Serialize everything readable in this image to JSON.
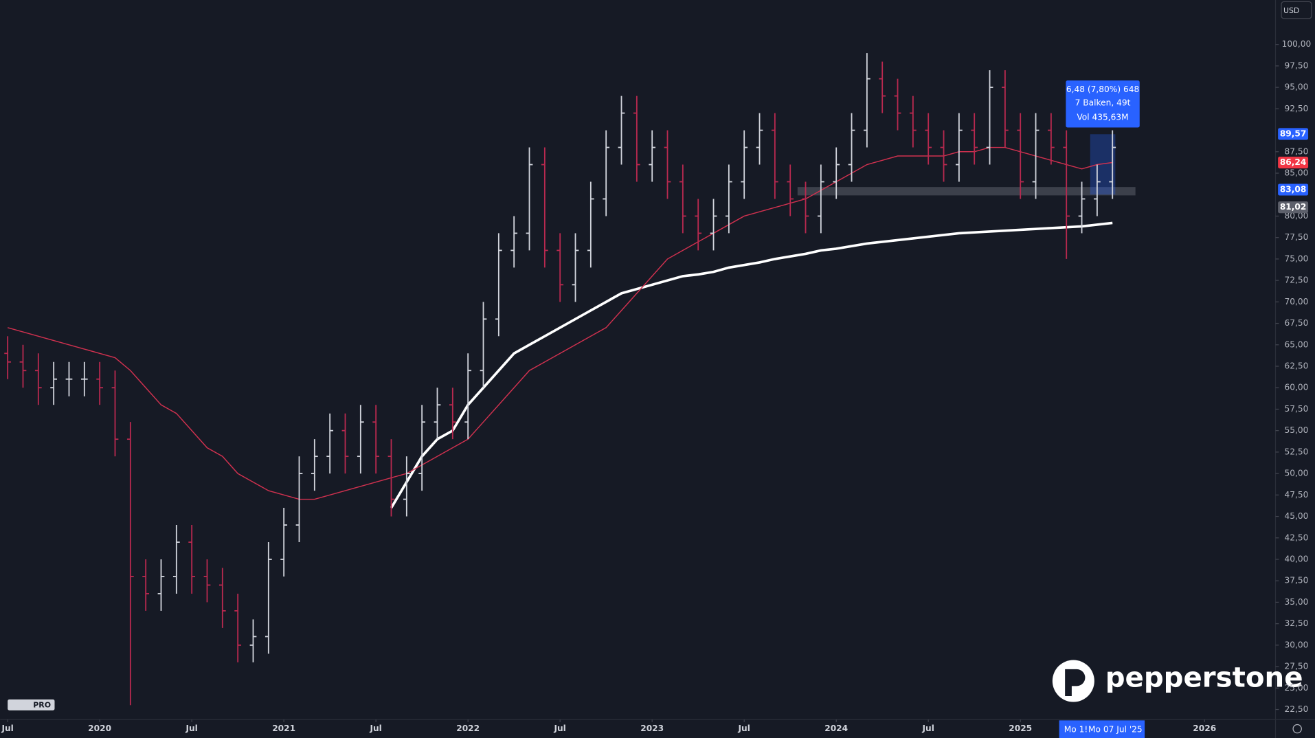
{
  "chart_data": {
    "type": "candlestick",
    "currency": "USD",
    "tv_logo": "PRO",
    "brand": "pepperstone",
    "categories": [
      "2019-07",
      "2019-08",
      "2019-09",
      "2019-10",
      "2019-11",
      "2019-12",
      "2020-01",
      "2020-02",
      "2020-03",
      "2020-04",
      "2020-05",
      "2020-06",
      "2020-07",
      "2020-08",
      "2020-09",
      "2020-10",
      "2020-11",
      "2020-12",
      "2021-01",
      "2021-02",
      "2021-03",
      "2021-04",
      "2021-05",
      "2021-06",
      "2021-07",
      "2021-08",
      "2021-09",
      "2021-10",
      "2021-11",
      "2021-12",
      "2022-01",
      "2022-02",
      "2022-03",
      "2022-04",
      "2022-05",
      "2022-06",
      "2022-07",
      "2022-08",
      "2022-09",
      "2022-10",
      "2022-11",
      "2022-12",
      "2023-01",
      "2023-02",
      "2023-03",
      "2023-04",
      "2023-05",
      "2023-06",
      "2023-07",
      "2023-08",
      "2023-09",
      "2023-10",
      "2023-11",
      "2023-12",
      "2024-01",
      "2024-02",
      "2024-03",
      "2024-04",
      "2024-05",
      "2024-06",
      "2024-07",
      "2024-08",
      "2024-09",
      "2024-10",
      "2024-11",
      "2024-12",
      "2025-01",
      "2025-02",
      "2025-03",
      "2025-04",
      "2025-05",
      "2025-06",
      "2025-07"
    ],
    "open": [
      64,
      63,
      62,
      60,
      61,
      61,
      61,
      60,
      54,
      38,
      36,
      38,
      42,
      38,
      37,
      34,
      30,
      31,
      40,
      44,
      50,
      52,
      55,
      52,
      56,
      52,
      47,
      50,
      56,
      58,
      56,
      62,
      68,
      76,
      78,
      86,
      76,
      72,
      76,
      82,
      88,
      92,
      86,
      88,
      84,
      80,
      78,
      80,
      84,
      88,
      90,
      84,
      82,
      80,
      84,
      86,
      90,
      96,
      94,
      92,
      90,
      88,
      86,
      90,
      88,
      95,
      90,
      84,
      90,
      88,
      80,
      82,
      84
    ],
    "high": [
      66,
      65,
      64,
      63,
      63,
      63,
      63,
      62,
      56,
      40,
      40,
      44,
      44,
      40,
      39,
      36,
      33,
      42,
      46,
      52,
      54,
      57,
      57,
      58,
      58,
      54,
      52,
      58,
      60,
      60,
      64,
      70,
      78,
      80,
      88,
      88,
      78,
      78,
      84,
      90,
      94,
      94,
      90,
      90,
      86,
      82,
      82,
      86,
      90,
      92,
      92,
      86,
      84,
      86,
      88,
      92,
      99,
      98,
      96,
      94,
      92,
      90,
      92,
      92,
      97,
      97,
      92,
      92,
      92,
      90,
      84,
      86,
      90
    ],
    "low": [
      61,
      60,
      58,
      58,
      59,
      59,
      58,
      52,
      23,
      34,
      34,
      36,
      36,
      35,
      32,
      28,
      28,
      29,
      38,
      42,
      48,
      50,
      50,
      50,
      50,
      45,
      45,
      48,
      54,
      54,
      54,
      60,
      66,
      74,
      76,
      74,
      70,
      70,
      74,
      80,
      86,
      84,
      84,
      82,
      78,
      76,
      76,
      78,
      82,
      86,
      82,
      80,
      78,
      78,
      82,
      84,
      88,
      92,
      90,
      88,
      86,
      84,
      84,
      86,
      86,
      88,
      82,
      82,
      86,
      75,
      78,
      80,
      82
    ],
    "close": [
      63,
      62,
      60,
      61,
      61,
      61,
      60,
      54,
      38,
      36,
      38,
      42,
      38,
      37,
      34,
      30,
      31,
      40,
      44,
      50,
      52,
      55,
      52,
      56,
      52,
      47,
      50,
      56,
      58,
      56,
      62,
      68,
      76,
      78,
      86,
      76,
      72,
      76,
      82,
      88,
      92,
      86,
      88,
      84,
      80,
      78,
      80,
      84,
      88,
      90,
      84,
      82,
      80,
      84,
      86,
      90,
      96,
      94,
      92,
      90,
      88,
      86,
      90,
      88,
      95,
      90,
      84,
      90,
      88,
      80,
      82,
      84,
      88
    ],
    "up_color": "#d1d4dc",
    "down_color": "#b8294f",
    "overlays": [
      {
        "color": "#ffffff",
        "values": [
          null,
          null,
          null,
          null,
          null,
          null,
          null,
          null,
          null,
          null,
          null,
          null,
          null,
          null,
          null,
          null,
          null,
          null,
          null,
          null,
          null,
          null,
          null,
          null,
          null,
          46,
          49,
          52,
          54,
          55,
          58,
          60,
          62,
          64,
          65,
          66,
          67,
          68,
          69,
          70,
          71,
          71.5,
          72,
          72.5,
          73,
          73.2,
          73.5,
          74,
          74.3,
          74.6,
          75,
          75.3,
          75.6,
          76,
          76.2,
          76.5,
          76.8,
          77,
          77.2,
          77.4,
          77.6,
          77.8,
          78,
          78.1,
          78.2,
          78.3,
          78.4,
          78.5,
          78.6,
          78.7,
          78.8,
          79,
          79.2
        ]
      },
      {
        "color": "#d0314f",
        "values": [
          67,
          66.5,
          66,
          65.5,
          65,
          64.5,
          64,
          63.5,
          62,
          60,
          58,
          57,
          55,
          53,
          52,
          50,
          49,
          48,
          47.5,
          47,
          47,
          47.5,
          48,
          48.5,
          49,
          49.5,
          50,
          51,
          52,
          53,
          54,
          56,
          58,
          60,
          62,
          63,
          64,
          65,
          66,
          67,
          69,
          71,
          73,
          75,
          76,
          77,
          78,
          79,
          80,
          80.5,
          81,
          81.5,
          82,
          83,
          84,
          85,
          86,
          86.5,
          87,
          87,
          87,
          87,
          87.5,
          87.5,
          88,
          88,
          87.5,
          87,
          86.5,
          86,
          85.5,
          86,
          86.24
        ]
      }
    ],
    "ylim": [
      21.33,
      105.18
    ],
    "yticks": [
      {
        "value": 22.5,
        "label": "22,50"
      },
      {
        "value": 25,
        "label": "25,00"
      },
      {
        "value": 27.5,
        "label": "27,50"
      },
      {
        "value": 30,
        "label": "30,00"
      },
      {
        "value": 32.5,
        "label": "32,50"
      },
      {
        "value": 35,
        "label": "35,00"
      },
      {
        "value": 37.5,
        "label": "37,50"
      },
      {
        "value": 40,
        "label": "40,00"
      },
      {
        "value": 42.5,
        "label": "42,50"
      },
      {
        "value": 45,
        "label": "45,00"
      },
      {
        "value": 47.5,
        "label": "47,50"
      },
      {
        "value": 50,
        "label": "50,00"
      },
      {
        "value": 52.5,
        "label": "52,50"
      },
      {
        "value": 55,
        "label": "55,00"
      },
      {
        "value": 57.5,
        "label": "57,50"
      },
      {
        "value": 60,
        "label": "60,00"
      },
      {
        "value": 62.5,
        "label": "62,50"
      },
      {
        "value": 65,
        "label": "65,00"
      },
      {
        "value": 67.5,
        "label": "67,50"
      },
      {
        "value": 70,
        "label": "70,00"
      },
      {
        "value": 72.5,
        "label": "72,50"
      },
      {
        "value": 75,
        "label": "75,00"
      },
      {
        "value": 77.5,
        "label": "77,50"
      },
      {
        "value": 80,
        "label": "80,00"
      },
      {
        "value": 85,
        "label": "85,00"
      },
      {
        "value": 87.5,
        "label": "87,50"
      },
      {
        "value": 92.5,
        "label": "92,50"
      },
      {
        "value": 95,
        "label": "95,00"
      },
      {
        "value": 97.5,
        "label": "97,50"
      },
      {
        "value": 100,
        "label": "100,00"
      }
    ],
    "xticks": [
      {
        "value": 0,
        "label": "Jul"
      },
      {
        "value": 6,
        "label": "2020"
      },
      {
        "value": 12,
        "label": "Jul"
      },
      {
        "value": 18,
        "label": "2021"
      },
      {
        "value": 24,
        "label": "Jul"
      },
      {
        "value": 30,
        "label": "2022"
      },
      {
        "value": 36,
        "label": "Jul"
      },
      {
        "value": 42,
        "label": "2023"
      },
      {
        "value": 48,
        "label": "Jul"
      },
      {
        "value": 54,
        "label": "2024"
      },
      {
        "value": 60,
        "label": "Jul"
      },
      {
        "value": 66,
        "label": "2025"
      },
      {
        "value": 78,
        "label": "2026"
      }
    ],
    "price_labels": [
      {
        "value": 89.57,
        "label": "89,57",
        "color": "#2962ff"
      },
      {
        "value": 86.24,
        "label": "86,24",
        "color": "#f23645"
      },
      {
        "value": 83.08,
        "label": "83,08",
        "color": "#2962ff"
      },
      {
        "value": 81.02,
        "label": "81,02",
        "color": "#5d606b"
      }
    ],
    "tooltip": [
      "6,48 (7,80%) 648",
      "7 Balken, 49t",
      "Vol 435,63M"
    ],
    "crosshair_dates": [
      "Mo 1!",
      "Mo 07 Jul '25"
    ]
  }
}
